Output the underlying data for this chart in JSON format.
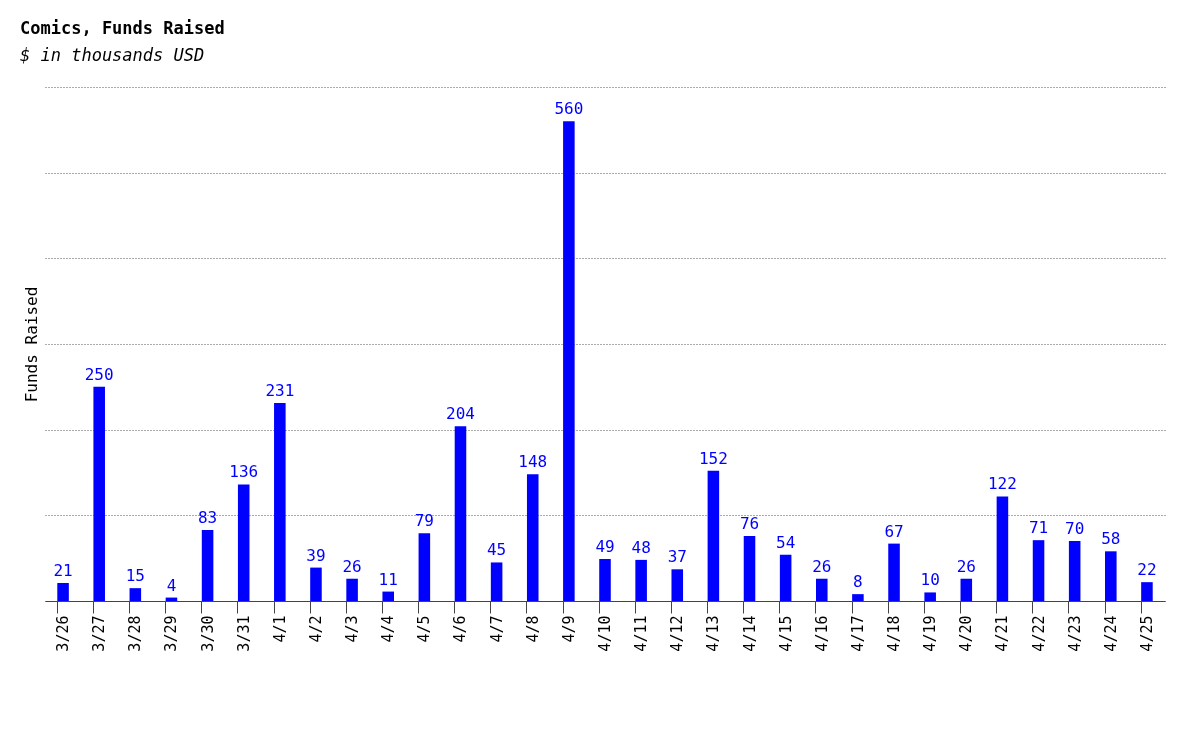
{
  "chart_data": {
    "type": "bar",
    "title": "Comics, Funds Raised",
    "subtitle": "$ in thousands USD",
    "ylabel": "Funds Raised",
    "categories": [
      "3/26",
      "3/27",
      "3/28",
      "3/29",
      "3/30",
      "3/31",
      "4/1",
      "4/2",
      "4/3",
      "4/4",
      "4/5",
      "4/6",
      "4/7",
      "4/8",
      "4/9",
      "4/10",
      "4/11",
      "4/12",
      "4/13",
      "4/14",
      "4/15",
      "4/16",
      "4/17",
      "4/18",
      "4/19",
      "4/20",
      "4/21",
      "4/22",
      "4/23",
      "4/24",
      "4/25"
    ],
    "values": [
      21,
      250,
      15,
      4,
      83,
      136,
      231,
      39,
      26,
      11,
      79,
      204,
      45,
      148,
      560,
      49,
      48,
      37,
      152,
      76,
      54,
      26,
      8,
      67,
      10,
      26,
      122,
      71,
      70,
      58,
      22
    ],
    "color": "#0000ff",
    "data_labels": true,
    "ylim": [
      0,
      600
    ],
    "yticks": [
      {
        "value": 0,
        "label": null
      },
      {
        "value": 100,
        "label": null
      },
      {
        "value": 200,
        "label": null
      },
      {
        "value": 300,
        "label": null
      },
      {
        "value": 400,
        "label": null
      },
      {
        "value": 500,
        "label": null
      },
      {
        "value": 600,
        "label": null
      }
    ],
    "grid": "y",
    "tick_labels": "x"
  }
}
